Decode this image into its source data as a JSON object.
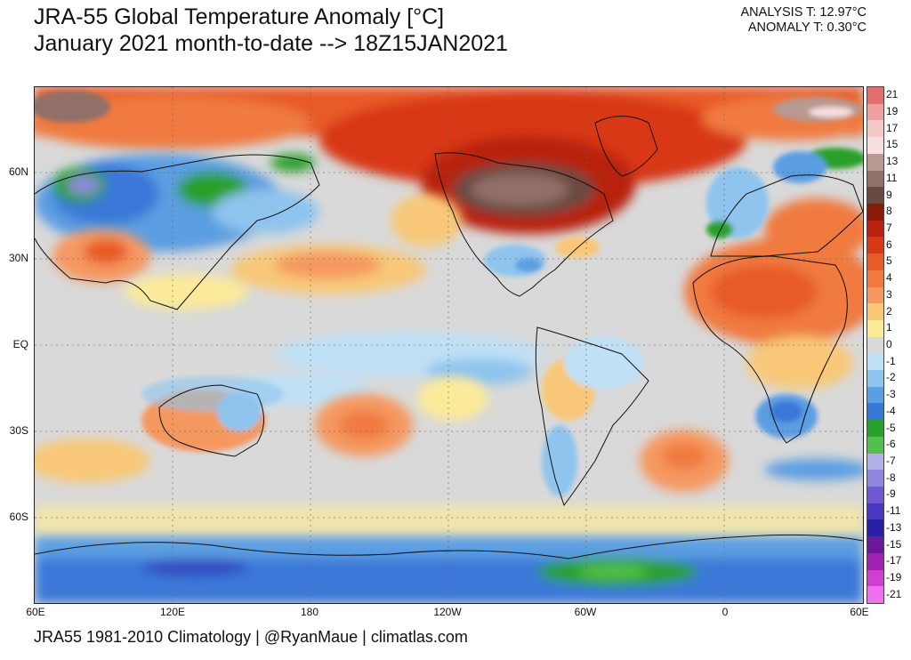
{
  "header": {
    "title_line1": "JRA-55 Global Temperature Anomaly [°C]",
    "title_line2": "January 2021 month-to-date --> 18Z15JAN2021",
    "analysis": "ANALYSIS T: 12.97°C",
    "anomaly": "ANOMALY T: 0.30°C"
  },
  "map": {
    "lat_labels": [
      "60N",
      "30N",
      "EQ",
      "30S",
      "60S"
    ],
    "lon_labels": [
      "60E",
      "120E",
      "180",
      "120W",
      "60W",
      "0",
      "60E"
    ],
    "background": "#d9d9d9"
  },
  "colorbar": {
    "labels": [
      "21",
      "19",
      "17",
      "15",
      "13",
      "11",
      "9",
      "8",
      "7",
      "6",
      "5",
      "4",
      "3",
      "2",
      "1",
      "0",
      "-1",
      "-2",
      "-3",
      "-4",
      "-5",
      "-6",
      "-7",
      "-8",
      "-9",
      "-11",
      "-13",
      "-15",
      "-17",
      "-19",
      "-21"
    ],
    "colors": [
      "#e07070",
      "#f0a0a0",
      "#f5c8c8",
      "#f7dede",
      "#b89890",
      "#907068",
      "#6a4a40",
      "#8a1a08",
      "#b82010",
      "#d83818",
      "#e85a28",
      "#f07a40",
      "#f59860",
      "#f8c878",
      "#fbea9a",
      "#d9d9d9",
      "#bfe0f5",
      "#8ec4ee",
      "#5c9ee2",
      "#3a78d8",
      "#2ca02c",
      "#52c04a",
      "#b0b0ea",
      "#9088e0",
      "#7058d0",
      "#4838c0",
      "#2a20a8",
      "#6a1a98",
      "#a020b0",
      "#d040d0",
      "#f070f0"
    ]
  },
  "footer": {
    "credit": "JRA55 1981-2010 Climatology | @RyanMaue | climatlas.com"
  }
}
